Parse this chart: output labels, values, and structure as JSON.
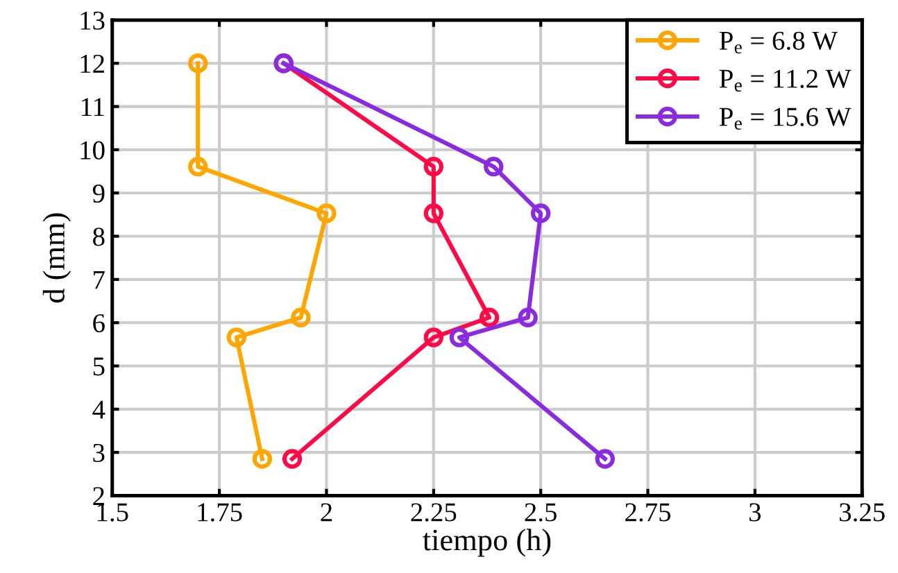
{
  "chart_data": {
    "type": "line",
    "xlabel": "tiempo (h)",
    "ylabel": "d (mm)",
    "xlim": [
      1.5,
      3.25
    ],
    "xticks": [
      1.5,
      1.75,
      2,
      2.25,
      2.5,
      2.75,
      3,
      3.25
    ],
    "ylim": [
      2,
      13
    ],
    "yticks": [
      2,
      3,
      4,
      5,
      6,
      7,
      8,
      9,
      10,
      11,
      12,
      13
    ],
    "grid": true,
    "legend": "top right",
    "marker": "circle",
    "line_style": "solid",
    "series": [
      {
        "name": "P$_{e}$ = 6.8 W",
        "color": "#ffa500",
        "x": [
          1.7,
          1.7,
          2.0,
          1.94,
          1.79,
          1.85
        ],
        "values": [
          12,
          9.61,
          8.53,
          6.12,
          5.66,
          2.85
        ]
      },
      {
        "name": "P$_{e}$ = 11.2 W",
        "color": "#ff0a46",
        "x": [
          1.9,
          2.25,
          2.25,
          2.38,
          2.25,
          1.92
        ],
        "values": [
          12,
          9.61,
          8.53,
          6.12,
          5.66,
          2.85
        ]
      },
      {
        "name": "P$_{e}$ = 15.6 W",
        "color": "#8a2be2",
        "x": [
          1.9,
          2.39,
          2.5,
          2.47,
          2.31,
          2.65
        ],
        "values": [
          12,
          9.61,
          8.53,
          6.12,
          5.66,
          2.85
        ]
      }
    ]
  }
}
